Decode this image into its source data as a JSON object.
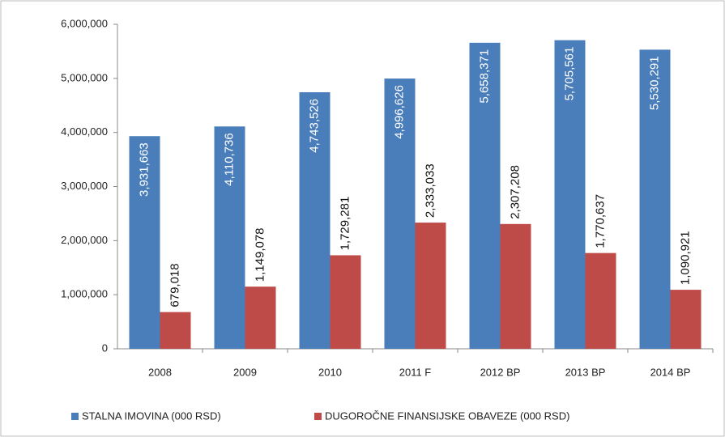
{
  "chart_data": {
    "type": "bar",
    "categories": [
      "2008",
      "2009",
      "2010",
      "2011 F",
      "2012 BP",
      "2013 BP",
      "2014 BP"
    ],
    "series": [
      {
        "name": "STALNA IMOVINA (000 RSD)",
        "color": "#4a7ebb",
        "values": [
          3931663,
          4110736,
          4743526,
          4996626,
          5658371,
          5705561,
          5530291
        ],
        "value_labels": [
          "3,931,663",
          "4,110,736",
          "4,743,526",
          "4,996,626",
          "5,658,371",
          "5,705,561",
          "5,530,291"
        ]
      },
      {
        "name": "DUGOROČNE FINANSIJSKE OBAVEZE (000 RSD)",
        "color": "#be4b48",
        "values": [
          679018,
          1149078,
          1729281,
          2333033,
          2307208,
          1770637,
          1090921
        ],
        "value_labels": [
          "679,018",
          "1,149,078",
          "1,729,281",
          "2,333,033",
          "2,307,208",
          "1,770,637",
          "1,090,921"
        ]
      }
    ],
    "ylim": [
      0,
      6000000
    ],
    "yticks": [
      0,
      {
        "value": 1000000,
        "label": "1,000,000"
      },
      {
        "value": 2000000,
        "label": "2,000,000"
      },
      {
        "value": 3000000,
        "label": "3,000,000"
      },
      {
        "value": 4000000,
        "label": "4,000,000"
      },
      {
        "value": 5000000,
        "label": "5,000,000"
      },
      {
        "value": 6000000,
        "label": "6,000,000"
      }
    ],
    "legend": "bottom"
  }
}
